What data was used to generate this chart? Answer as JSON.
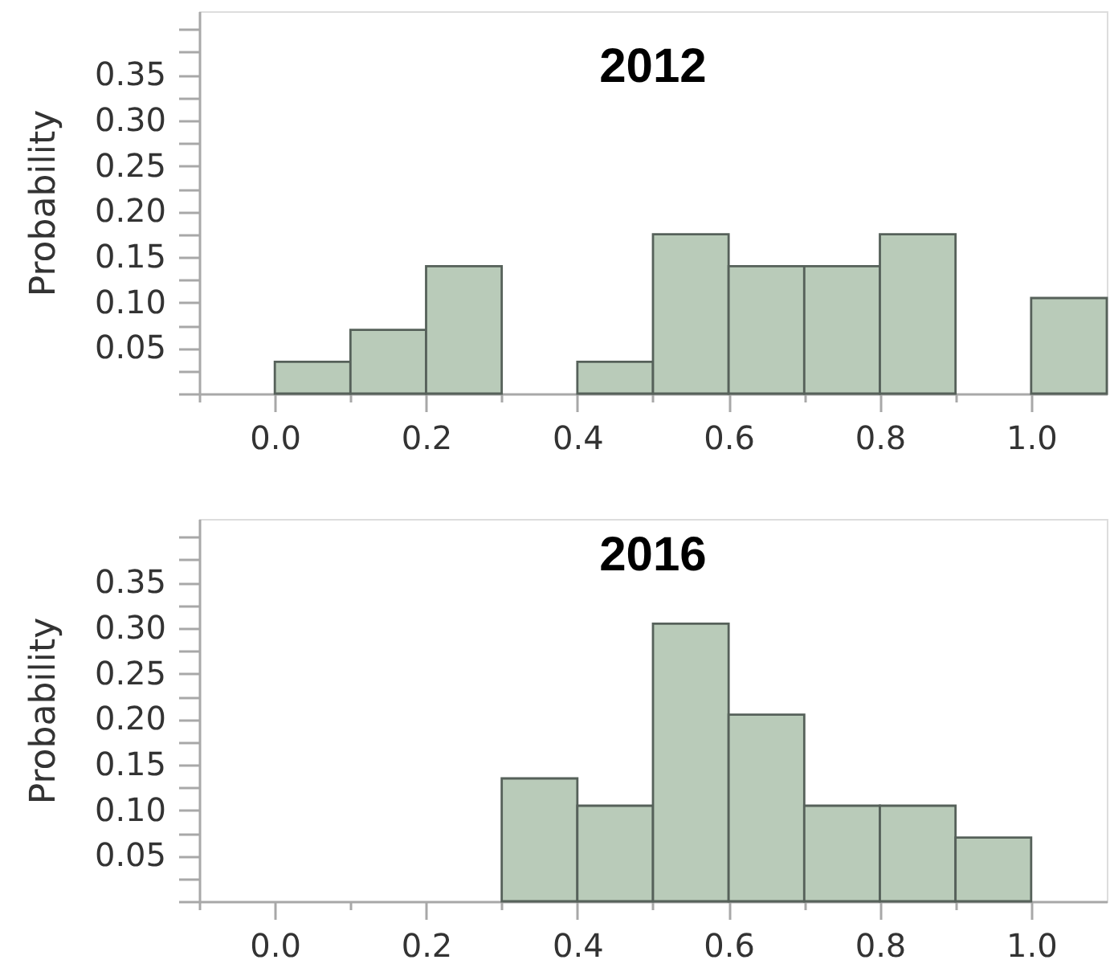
{
  "chart_data": [
    {
      "type": "histogram",
      "title": "2012",
      "ylabel": "Probability",
      "bins": [
        0,
        0.1,
        0.2,
        0.3,
        0.4,
        0.5,
        0.6,
        0.7,
        0.8,
        0.9,
        1.0,
        1.1
      ],
      "values": [
        0.035,
        0.07,
        0.14,
        0,
        0.035,
        0.175,
        0.14,
        0.14,
        0.175,
        0,
        0.105
      ],
      "color": "#b9cbb9",
      "xlim": [
        -0.1,
        1.1
      ],
      "xticks": [
        {
          "value": -0.1,
          "label": null
        },
        {
          "value": 0,
          "label": "0.0"
        },
        {
          "value": 0.1,
          "label": null
        },
        0.2,
        {
          "value": 0.3,
          "label": null
        },
        0.4,
        {
          "value": 0.5,
          "label": null
        },
        0.6,
        {
          "value": 0.7,
          "label": null
        },
        0.8,
        {
          "value": 0.9,
          "label": null
        },
        {
          "value": 1,
          "label": "1.0"
        }
      ],
      "ylim": [
        0,
        0.42
      ],
      "yticks": [
        {
          "value": 0,
          "label": null
        },
        {
          "value": 0.025,
          "label": null
        },
        0.05,
        {
          "value": 0.075,
          "label": null
        },
        {
          "value": 0.1,
          "label": "0.10"
        },
        {
          "value": 0.125,
          "label": null
        },
        0.15,
        {
          "value": 0.175,
          "label": null
        },
        {
          "value": 0.2,
          "label": "0.20"
        },
        {
          "value": 0.225,
          "label": null
        },
        0.25,
        {
          "value": 0.275,
          "label": null
        },
        {
          "value": 0.3,
          "label": "0.30"
        },
        {
          "value": 0.325,
          "label": null
        },
        0.35,
        {
          "value": 0.375,
          "label": null
        },
        {
          "value": 0.4,
          "label": null
        }
      ]
    },
    {
      "type": "histogram",
      "title": "2016",
      "ylabel": "Probability",
      "bins": [
        0.3,
        0.4,
        0.5,
        0.6,
        0.7,
        0.8,
        0.9,
        1.0
      ],
      "values": [
        0.135,
        0.105,
        0.305,
        0.205,
        0.105,
        0.105,
        0.07
      ],
      "color": "#b9cbb9",
      "xlim": [
        -0.1,
        1.1
      ],
      "xticks": [
        {
          "value": -0.1,
          "label": null
        },
        {
          "value": 0,
          "label": "0.0"
        },
        {
          "value": 0.1,
          "label": null
        },
        0.2,
        {
          "value": 0.3,
          "label": null
        },
        0.4,
        {
          "value": 0.5,
          "label": null
        },
        0.6,
        {
          "value": 0.7,
          "label": null
        },
        0.8,
        {
          "value": 0.9,
          "label": null
        },
        {
          "value": 1,
          "label": "1.0"
        }
      ],
      "ylim": [
        0,
        0.42
      ],
      "yticks": [
        {
          "value": 0,
          "label": null
        },
        {
          "value": 0.025,
          "label": null
        },
        0.05,
        {
          "value": 0.075,
          "label": null
        },
        {
          "value": 0.1,
          "label": "0.10"
        },
        {
          "value": 0.125,
          "label": null
        },
        0.15,
        {
          "value": 0.175,
          "label": null
        },
        {
          "value": 0.2,
          "label": "0.20"
        },
        {
          "value": 0.225,
          "label": null
        },
        0.25,
        {
          "value": 0.275,
          "label": null
        },
        {
          "value": 0.3,
          "label": "0.30"
        },
        {
          "value": 0.325,
          "label": null
        },
        0.35,
        {
          "value": 0.375,
          "label": null
        },
        {
          "value": 0.4,
          "label": null
        }
      ]
    }
  ]
}
